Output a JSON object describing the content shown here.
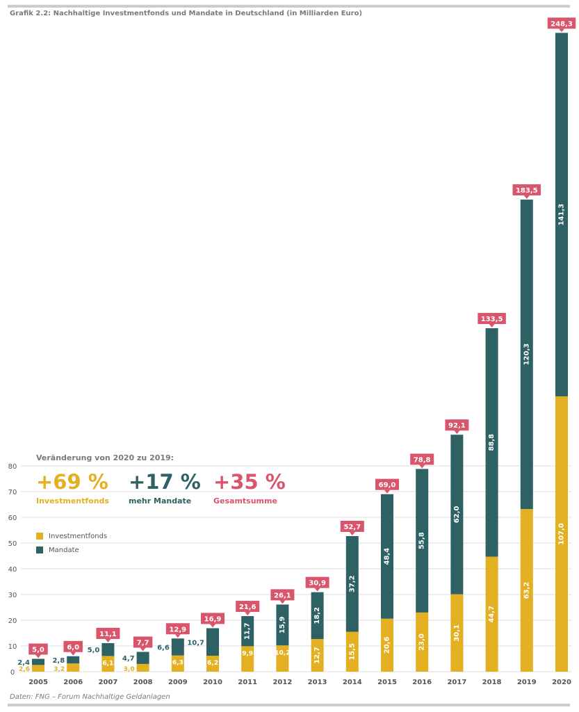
{
  "title": "Grafik 2.2: Nachhaltige Investmentfonds und Mandate in Deutschland (in Milliarden Euro)",
  "source": "Daten: FNG – Forum Nachhaltige Geldanlagen",
  "colors": {
    "fonds": "#e3b022",
    "mandate": "#2e6163",
    "total": "#d8556b",
    "grid": "#dedede",
    "text": "#555555"
  },
  "change": {
    "heading": "Veränderung von 2020 zu 2019:",
    "items": [
      {
        "value": "+69 %",
        "label": "Investmentfonds",
        "color": "#e3b022"
      },
      {
        "value": "+17 %",
        "label": "mehr Mandate",
        "color": "#2e6163"
      },
      {
        "value": "+35 %",
        "label": "Gesamtsumme",
        "color": "#d8556b"
      }
    ]
  },
  "legend": [
    {
      "label": "Investmentfonds",
      "color": "#e3b022"
    },
    {
      "label": "Mandate",
      "color": "#2e6163"
    }
  ],
  "chart_data": {
    "type": "bar",
    "stacked": true,
    "title": "Grafik 2.2: Nachhaltige Investmentfonds und Mandate in Deutschland (in Milliarden Euro)",
    "categories": [
      "2005",
      "2006",
      "2007",
      "2008",
      "2009",
      "2010",
      "2011",
      "2012",
      "2013",
      "2014",
      "2015",
      "2016",
      "2017",
      "2018",
      "2019",
      "2020"
    ],
    "series": [
      {
        "name": "Investmentfonds",
        "values": [
          2.6,
          3.2,
          6.1,
          3.0,
          6.3,
          6.2,
          9.9,
          10.2,
          12.7,
          15.5,
          20.6,
          23.0,
          30.1,
          44.7,
          63.2,
          107.0
        ],
        "labels": [
          "2,6",
          "3,2",
          "6,1",
          "3,0",
          "6,3",
          "6,2",
          "9,9",
          "10,2",
          "12,7",
          "15,5",
          "20,6",
          "23,0",
          "30,1",
          "44,7",
          "63,2",
          "107,0"
        ]
      },
      {
        "name": "Mandate",
        "values": [
          2.4,
          2.8,
          5.0,
          4.7,
          6.6,
          10.7,
          11.7,
          15.9,
          18.2,
          37.2,
          48.4,
          55.8,
          62.0,
          88.8,
          120.3,
          141.3
        ],
        "labels": [
          "2,4",
          "2,8",
          "5,0",
          "4,7",
          "6,6",
          "10,7",
          "11,7",
          "15,9",
          "18,2",
          "37,2",
          "48,4",
          "55,8",
          "62,0",
          "88,8",
          "120,3",
          "141,3"
        ]
      }
    ],
    "totals": [
      5.0,
      6.0,
      11.1,
      7.7,
      12.9,
      16.9,
      21.6,
      26.1,
      30.9,
      52.7,
      69.0,
      78.8,
      92.1,
      133.5,
      183.5,
      248.3
    ],
    "total_labels": [
      "5,0",
      "6,0",
      "11,1",
      "7,7",
      "12,9",
      "16,9",
      "21,6",
      "26,1",
      "30,9",
      "52,7",
      "69,0",
      "78,8",
      "92,1",
      "133,5",
      "183,5",
      "248,3"
    ],
    "y_ticks": [
      0,
      10,
      20,
      30,
      40,
      50,
      60,
      70,
      80
    ],
    "ylim": [
      0,
      250
    ],
    "grid": true,
    "legend_position": "left-middle"
  }
}
